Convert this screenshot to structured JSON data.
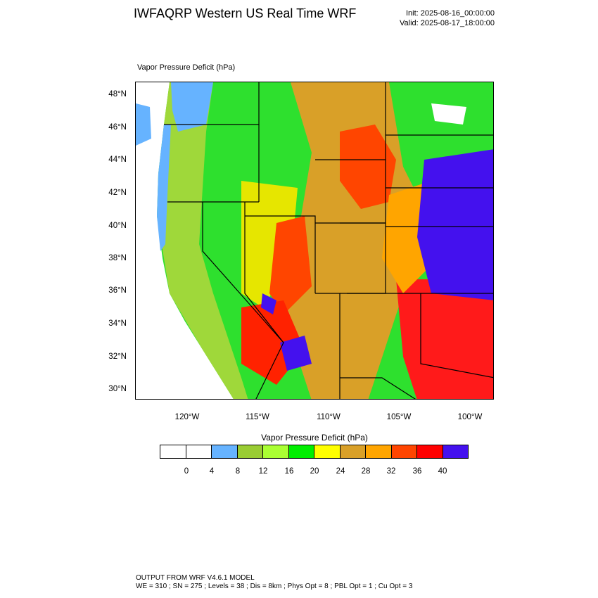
{
  "header": {
    "title": "IWFAQRP Western US Real Time WRF",
    "init": "Init: 2025-08-16_00:00:00",
    "valid": "Valid: 2025-08-17_18:00:00"
  },
  "map": {
    "variable_label": "Vapor Pressure Deficit   (hPa)",
    "lat_ticks": [
      "48°N",
      "46°N",
      "44°N",
      "42°N",
      "40°N",
      "38°N",
      "36°N",
      "34°N",
      "32°N",
      "30°N"
    ],
    "lon_ticks": [
      "120°W",
      "115°W",
      "110°W",
      "105°W",
      "100°W"
    ]
  },
  "colorbar": {
    "title": "Vapor Pressure Deficit  (hPa)",
    "labels": [
      "0",
      "4",
      "8",
      "12",
      "16",
      "20",
      "24",
      "28",
      "32",
      "36",
      "40"
    ],
    "colors": [
      "#ffffff",
      "#ffffff",
      "#66b3ff",
      "#99cc33",
      "#aaff33",
      "#00ee00",
      "#ffff00",
      "#d9a028",
      "#ffa500",
      "#ff4500",
      "#ff0000",
      "#4411ee"
    ]
  },
  "footer": {
    "line1": "OUTPUT FROM WRF V4.6.1 MODEL",
    "line2": "WE = 310 ; SN = 275 ; Levels = 38 ; Dis = 8km ; Phys Opt = 8 ; PBL Opt = 1 ; Cu Opt = 3"
  }
}
